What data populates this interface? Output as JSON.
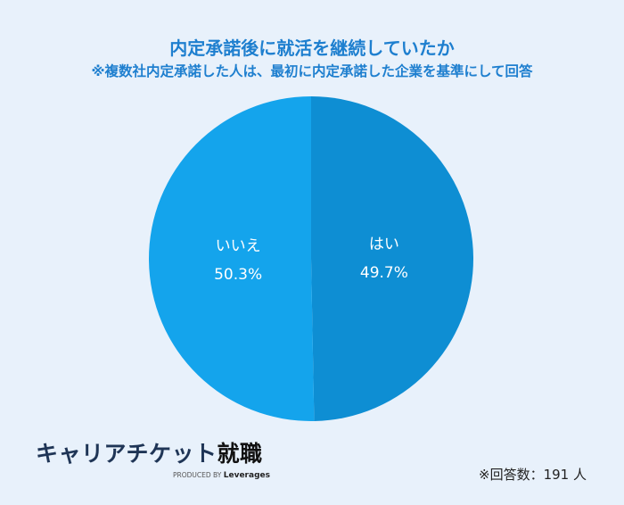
{
  "header": {
    "title": "内定承諾後に就活を継続していたか",
    "subtitle": "※複数社内定承諾した人は、最初に内定承諾した企業を基準にして回答"
  },
  "chart_data": {
    "type": "pie",
    "slices": [
      {
        "label": "はい",
        "value": 49.7,
        "display": "49.7%",
        "color": "#0e8ed3"
      },
      {
        "label": "いいえ",
        "value": 50.3,
        "display": "50.3%",
        "color": "#14a4ec"
      }
    ]
  },
  "footer": {
    "logo_main": "キャリアチケット",
    "logo_accent": "就職",
    "logo_produced": "PRODUCED BY",
    "logo_brand": "Leverages",
    "respondents": "※回答数：191 人"
  }
}
